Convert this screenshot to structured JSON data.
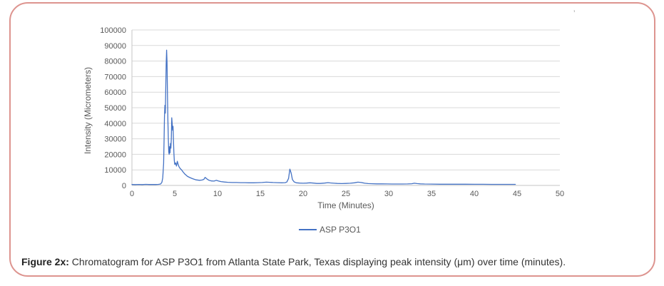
{
  "figure": {
    "caption_label": "Figure 2x:",
    "caption_text": " Chromatogram for ASP P3O1 from Atlanta State Park, Texas displaying peak intensity (μm) over time (minutes).",
    "stray_mark": "’",
    "border_color": "#dd948f"
  },
  "chart_data": {
    "type": "line",
    "title": "",
    "xlabel": "Time (Minutes)",
    "ylabel": "Intensity (Micrometers)",
    "xlim": [
      0,
      50
    ],
    "ylim": [
      0,
      100000
    ],
    "x_ticks": [
      0,
      5,
      10,
      15,
      20,
      25,
      30,
      35,
      40,
      45,
      50
    ],
    "y_ticks": [
      0,
      10000,
      20000,
      30000,
      40000,
      50000,
      60000,
      70000,
      80000,
      90000,
      100000
    ],
    "grid": "horizontal",
    "legend_position": "bottom",
    "line_color": "#4472c4",
    "gridline_color": "#d9d9d9",
    "axis_color": "#c6c6c6",
    "tick_label_color": "#595959",
    "series": [
      {
        "name": "ASP P3O1",
        "points": [
          [
            0,
            600
          ],
          [
            0.4,
            550
          ],
          [
            0.8,
            650
          ],
          [
            1.2,
            550
          ],
          [
            1.6,
            700
          ],
          [
            2.0,
            600
          ],
          [
            2.4,
            650
          ],
          [
            2.8,
            600
          ],
          [
            3.1,
            700
          ],
          [
            3.35,
            900
          ],
          [
            3.5,
            2000
          ],
          [
            3.6,
            5000
          ],
          [
            3.7,
            14000
          ],
          [
            3.75,
            28000
          ],
          [
            3.8,
            44000
          ],
          [
            3.85,
            51500
          ],
          [
            3.9,
            46500
          ],
          [
            3.95,
            62000
          ],
          [
            4.0,
            78000
          ],
          [
            4.05,
            87000
          ],
          [
            4.1,
            79000
          ],
          [
            4.15,
            58000
          ],
          [
            4.2,
            42000
          ],
          [
            4.25,
            30000
          ],
          [
            4.3,
            21500
          ],
          [
            4.35,
            20000
          ],
          [
            4.4,
            25000
          ],
          [
            4.45,
            21000
          ],
          [
            4.5,
            27000
          ],
          [
            4.55,
            24000
          ],
          [
            4.6,
            30000
          ],
          [
            4.65,
            43500
          ],
          [
            4.7,
            40000
          ],
          [
            4.75,
            35500
          ],
          [
            4.8,
            38000
          ],
          [
            4.85,
            29000
          ],
          [
            4.9,
            21000
          ],
          [
            4.95,
            16000
          ],
          [
            5.0,
            13500
          ],
          [
            5.1,
            14500
          ],
          [
            5.2,
            12500
          ],
          [
            5.3,
            15500
          ],
          [
            5.4,
            13500
          ],
          [
            5.5,
            12000
          ],
          [
            5.65,
            10800
          ],
          [
            5.8,
            10000
          ],
          [
            6.0,
            8500
          ],
          [
            6.2,
            7200
          ],
          [
            6.5,
            5800
          ],
          [
            6.8,
            5000
          ],
          [
            7.1,
            4300
          ],
          [
            7.5,
            3600
          ],
          [
            7.9,
            3300
          ],
          [
            8.2,
            3500
          ],
          [
            8.4,
            3900
          ],
          [
            8.55,
            5200
          ],
          [
            8.75,
            4200
          ],
          [
            9.0,
            3300
          ],
          [
            9.3,
            2900
          ],
          [
            9.6,
            2800
          ],
          [
            9.85,
            3300
          ],
          [
            10.1,
            2900
          ],
          [
            10.4,
            2500
          ],
          [
            10.8,
            2200
          ],
          [
            11.2,
            2000
          ],
          [
            11.7,
            1900
          ],
          [
            12.2,
            1900
          ],
          [
            12.7,
            1800
          ],
          [
            13.2,
            1800
          ],
          [
            13.7,
            1700
          ],
          [
            14.2,
            1700
          ],
          [
            14.7,
            1800
          ],
          [
            15.2,
            1900
          ],
          [
            15.7,
            2100
          ],
          [
            16.1,
            2000
          ],
          [
            16.5,
            1900
          ],
          [
            17.0,
            1800
          ],
          [
            17.5,
            1700
          ],
          [
            17.9,
            1800
          ],
          [
            18.1,
            2200
          ],
          [
            18.3,
            4500
          ],
          [
            18.45,
            10500
          ],
          [
            18.6,
            8000
          ],
          [
            18.75,
            3800
          ],
          [
            18.95,
            2300
          ],
          [
            19.2,
            1700
          ],
          [
            19.6,
            1500
          ],
          [
            20.0,
            1400
          ],
          [
            20.4,
            1500
          ],
          [
            20.8,
            1700
          ],
          [
            21.2,
            1500
          ],
          [
            21.6,
            1300
          ],
          [
            22.0,
            1300
          ],
          [
            22.5,
            1500
          ],
          [
            22.9,
            1800
          ],
          [
            23.2,
            1600
          ],
          [
            23.6,
            1400
          ],
          [
            24.0,
            1300
          ],
          [
            24.5,
            1200
          ],
          [
            25.0,
            1300
          ],
          [
            25.5,
            1400
          ],
          [
            26.0,
            1700
          ],
          [
            26.4,
            2100
          ],
          [
            26.8,
            1900
          ],
          [
            27.2,
            1400
          ],
          [
            27.6,
            1200
          ],
          [
            28.1,
            1100
          ],
          [
            28.6,
            1000
          ],
          [
            29.2,
            1000
          ],
          [
            29.8,
            950
          ],
          [
            30.4,
            900
          ],
          [
            31.0,
            900
          ],
          [
            31.6,
            900
          ],
          [
            32.2,
            950
          ],
          [
            32.7,
            1100
          ],
          [
            33.0,
            1400
          ],
          [
            33.3,
            1200
          ],
          [
            33.7,
            1000
          ],
          [
            34.2,
            900
          ],
          [
            35.0,
            850
          ],
          [
            36.0,
            800
          ],
          [
            37.0,
            800
          ],
          [
            38.0,
            780
          ],
          [
            39.0,
            760
          ],
          [
            40.0,
            740
          ],
          [
            41.0,
            720
          ],
          [
            42.0,
            710
          ],
          [
            43.0,
            700
          ],
          [
            44.0,
            700
          ],
          [
            44.8,
            700
          ]
        ]
      }
    ]
  }
}
